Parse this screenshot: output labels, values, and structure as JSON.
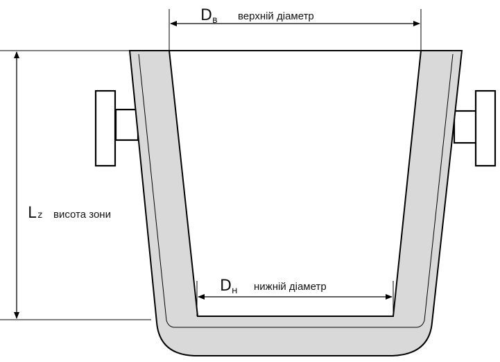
{
  "labels": {
    "top_symbol_main": "D",
    "top_symbol_sub": "в",
    "top_text": "верхній діаметр",
    "bottom_symbol_main": "D",
    "bottom_symbol_sub": "н",
    "bottom_text": "нижній діаметр",
    "height_symbol_main": "L",
    "height_symbol_sub": "z",
    "height_text": "висота зони"
  },
  "colors": {
    "lining_fill": "#d9d9d9",
    "outline": "#000000",
    "background": "#ffffff"
  }
}
